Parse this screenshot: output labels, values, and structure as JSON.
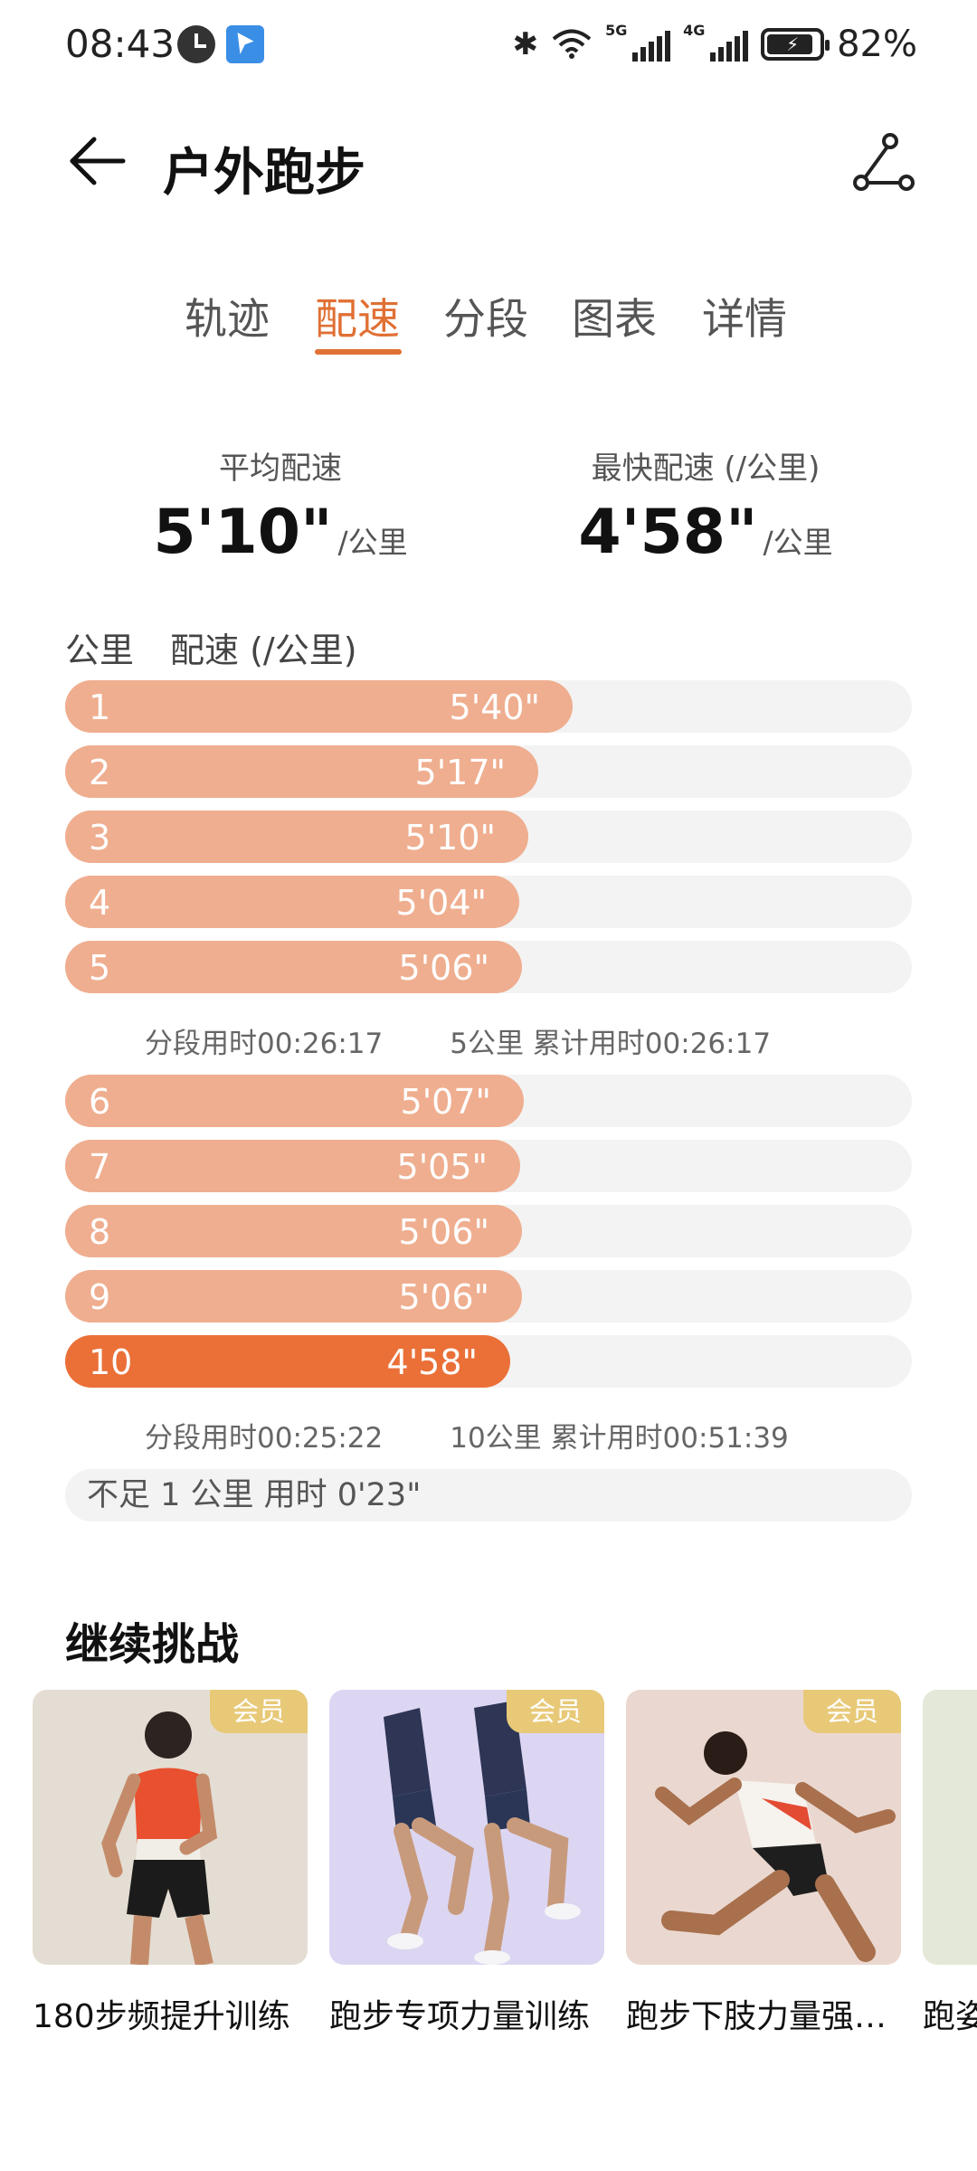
{
  "status_bar": {
    "time": "08:43",
    "net_5g": "5G",
    "net_4g": "4G",
    "battery": "82%"
  },
  "header": {
    "title": "户外跑步"
  },
  "tabs": [
    {
      "label": "轨迹",
      "active": false
    },
    {
      "label": "配速",
      "active": true
    },
    {
      "label": "分段",
      "active": false
    },
    {
      "label": "图表",
      "active": false
    },
    {
      "label": "详情",
      "active": false
    }
  ],
  "summary": {
    "avg_label": "平均配速",
    "avg_value": "5'10\"",
    "avg_unit": "/公里",
    "fastest_label": "最快配速 (/公里)",
    "fastest_value": "4'58\"",
    "fastest_unit": "/公里"
  },
  "table": {
    "col_km": "公里",
    "col_pace": "配速 (/公里)"
  },
  "splits": [
    {
      "km": "1",
      "pace": "5'40\"",
      "seconds": 340
    },
    {
      "km": "2",
      "pace": "5'17\"",
      "seconds": 317
    },
    {
      "km": "3",
      "pace": "5'10\"",
      "seconds": 310
    },
    {
      "km": "4",
      "pace": "5'04\"",
      "seconds": 304
    },
    {
      "km": "5",
      "pace": "5'06\"",
      "seconds": 306
    },
    {
      "km": "6",
      "pace": "5'07\"",
      "seconds": 307
    },
    {
      "km": "7",
      "pace": "5'05\"",
      "seconds": 305
    },
    {
      "km": "8",
      "pace": "5'06\"",
      "seconds": 306
    },
    {
      "km": "9",
      "pace": "5'06\"",
      "seconds": 306
    },
    {
      "km": "10",
      "pace": "4'58\"",
      "seconds": 298,
      "fastest": true
    }
  ],
  "segments": [
    {
      "split_time": "分段用时00:26:17",
      "cumulative": "5公里 累计用时00:26:17"
    },
    {
      "split_time": "分段用时00:25:22",
      "cumulative": "10公里 累计用时00:51:39"
    }
  ],
  "remainder": "不足 1 公里 用时 0'23\"",
  "challenge": {
    "title": "继续挑战",
    "cards": [
      {
        "title": "180步频提升训练",
        "badge": "会员",
        "bg": "#e4ddd3"
      },
      {
        "title": "跑步专项力量训练",
        "badge": "会员",
        "bg": "#dcd6f2"
      },
      {
        "title": "跑步下肢力量强…",
        "badge": "会员",
        "bg": "#ead8d0"
      },
      {
        "title": "跑姿",
        "badge": "",
        "bg": "#e3e8d8"
      }
    ]
  },
  "colors": {
    "accent": "#e07034",
    "bar": "#efae8f",
    "bar_fastest": "#ea7038",
    "track": "#f3f3f3",
    "badge": "#e8c978"
  }
}
